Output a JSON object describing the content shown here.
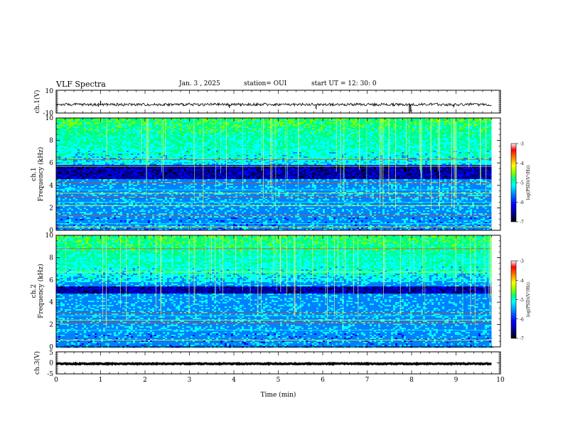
{
  "header": {
    "title": "VLF Spectra",
    "date": "Jan. 3 , 2025",
    "station": "station= OUI",
    "start": "start UT = 12: 30: 0"
  },
  "colors": {
    "axis": "#000000",
    "trace": "#000000",
    "spectrogram_colormap": [
      "#000000",
      "#00008b",
      "#0000ff",
      "#0080ff",
      "#00ffff",
      "#00ff80",
      "#7fff00",
      "#ffff00",
      "#ff8000",
      "#ff0000",
      "#ffffff"
    ]
  },
  "chart_data": [
    {
      "id": "ch1_waveform",
      "type": "line",
      "ylabel": "ch.1(V)",
      "ylim": [
        -10,
        10
      ],
      "yticks": [
        "10",
        "-10"
      ],
      "xlim": [
        0,
        10
      ],
      "x_unit": "min",
      "baseline": -2.5,
      "noise_amplitude": 1.2,
      "spikes": [
        {
          "x": 0.95,
          "y": -4.5
        },
        {
          "x": 1.0,
          "y": 0.8
        },
        {
          "x": 3.9,
          "y": -5.5
        },
        {
          "x": 4.15,
          "y": -4.0
        },
        {
          "x": 5.85,
          "y": -6.5
        },
        {
          "x": 7.6,
          "y": -4.0
        },
        {
          "x": 7.95,
          "y": -10.0
        },
        {
          "x": 7.98,
          "y": -9.0
        },
        {
          "x": 8.95,
          "y": -5.0
        }
      ]
    },
    {
      "id": "ch1_spectrogram",
      "type": "heatmap",
      "ylabel": "ch.1\nFrequency (kHz)",
      "ylim": [
        0,
        10
      ],
      "yticks": [
        "0",
        "2",
        "4",
        "6",
        "8",
        "10"
      ],
      "xlim": [
        0,
        10
      ],
      "data_xmax": 9.8,
      "colorbar": {
        "label": "log(PSD)(V²/Hz)",
        "range": [
          -7,
          -3
        ],
        "ticks": [
          "-3",
          "-4",
          "-5",
          "-6",
          "-7"
        ]
      },
      "dark_band_khz": [
        4.6,
        5.8
      ],
      "bright_lines_khz": [
        0.3,
        0.6,
        1.3,
        2.2,
        2.5,
        3.0,
        3.3,
        3.6,
        4.2,
        5.7,
        6.0,
        6.3
      ],
      "seed": 17
    },
    {
      "id": "ch2_spectrogram",
      "type": "heatmap",
      "ylabel": "ch.2\nFrequency (kHz)",
      "ylim": [
        0,
        10
      ],
      "yticks": [
        "0",
        "2",
        "4",
        "6",
        "8",
        "10"
      ],
      "xlim": [
        0,
        10
      ],
      "data_xmax": 9.8,
      "colorbar": {
        "label": "log(PSD)(V²/Hz)",
        "range": [
          -7,
          -3
        ],
        "ticks": [
          "-3",
          "-4",
          "-5",
          "-6",
          "-7"
        ]
      },
      "dark_band_khz": [
        4.8,
        5.4
      ],
      "bright_lines_khz": [
        0.6,
        1.5,
        2.1,
        2.4,
        2.8,
        3.0,
        6.7,
        8.1,
        8.8
      ],
      "seed": 29
    },
    {
      "id": "ch3_waveform",
      "type": "line",
      "ylabel": "ch.3(V)",
      "ylim": [
        -5,
        5
      ],
      "yticks": [
        "5",
        "0",
        "-5"
      ],
      "xlim": [
        0,
        10
      ],
      "baseline": -0.4,
      "noise_amplitude": 0.2,
      "spikes": []
    }
  ],
  "xaxis": {
    "label": "Time (min)",
    "ticks": [
      "0",
      "1",
      "2",
      "3",
      "4",
      "5",
      "6",
      "7",
      "8",
      "9",
      "10"
    ]
  }
}
